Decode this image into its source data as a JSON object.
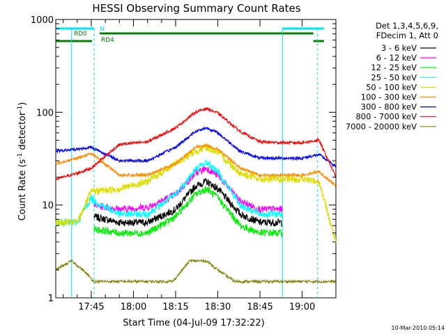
{
  "chart_data": {
    "type": "line",
    "title": "HESSI Observing Summary Count Rates",
    "xlabel": "Start Time (04-Jul-09 17:32:22)",
    "ylabel_main": "Count Rate (s",
    "ylabel_sup1": "-1",
    "ylabel_mid": " detector",
    "ylabel_sup2": "-1",
    "ylabel_end": ")",
    "y_scale": "log",
    "ylim": [
      1,
      1000
    ],
    "xlim": [
      "17:32:22",
      "19:12"
    ],
    "x_ticks": [
      "17:45",
      "18:00",
      "18:15",
      "18:30",
      "18:45",
      "19:00"
    ],
    "y_ticks": [
      "1",
      "10",
      "100",
      "1000"
    ],
    "grid": false,
    "legend_position": "right",
    "legend_header": [
      "Det 1,3,4,5,6,9,",
      "FDecim 1, Att 0"
    ],
    "footer_date": "10-Mar-2010 05:14",
    "flags": [
      {
        "label": "N",
        "color": "#00e5ee"
      },
      {
        "label": "RD0",
        "color": "#008000"
      },
      {
        "label": "RD4",
        "color": "#008000"
      }
    ],
    "night_boundaries": [
      "17:46",
      "18:53",
      "19:05"
    ],
    "series": [
      {
        "name": "3 - 6 keV",
        "color": "#000000",
        "x": [
          "17:46",
          "17:55",
          "18:05",
          "18:15",
          "18:22",
          "18:26",
          "18:30",
          "18:38",
          "18:45",
          "18:53"
        ],
        "values": [
          7.5,
          6.5,
          6.5,
          9,
          16,
          18,
          15,
          8,
          6.5,
          6.5
        ]
      },
      {
        "name": "6 - 12 keV",
        "color": "#ff00ff",
        "x": [
          "17:46",
          "17:55",
          "18:05",
          "18:15",
          "18:22",
          "18:26",
          "18:30",
          "18:38",
          "18:45",
          "18:53"
        ],
        "values": [
          10,
          9,
          9.5,
          13,
          22,
          25,
          21,
          11,
          9,
          9
        ]
      },
      {
        "name": "12 - 25 keV",
        "color": "#00ee00",
        "x": [
          "17:46",
          "17:55",
          "18:05",
          "18:15",
          "18:22",
          "18:26",
          "18:30",
          "18:38",
          "18:45",
          "18:53"
        ],
        "values": [
          5.5,
          5,
          5,
          7.5,
          13,
          15,
          12,
          6,
          5,
          5
        ]
      },
      {
        "name": "25 - 50 keV",
        "color": "#00ffff",
        "x": [
          "17:32:22",
          "17:40",
          "17:45",
          "17:46",
          "17:55",
          "18:05",
          "18:15",
          "18:22",
          "18:26",
          "18:30",
          "18:38",
          "18:45",
          "18:53"
        ],
        "values": [
          6.5,
          6.5,
          12,
          11,
          8,
          8,
          13,
          24,
          29,
          23,
          10,
          8,
          8
        ]
      },
      {
        "name": "50 - 100 keV",
        "color": "#dddd00",
        "x": [
          "17:32:22",
          "17:40",
          "17:45",
          "17:55",
          "18:05",
          "18:15",
          "18:22",
          "18:26",
          "18:30",
          "18:38",
          "18:45",
          "18:53",
          "19:00",
          "19:06",
          "19:12"
        ],
        "values": [
          6.5,
          6.5,
          14,
          15,
          18,
          28,
          38,
          42,
          37,
          22,
          19,
          19,
          19,
          18,
          4
        ]
      },
      {
        "name": "100 - 300 keV",
        "color": "#ff8c00",
        "x": [
          "17:32:22",
          "17:40",
          "17:45",
          "17:55",
          "18:05",
          "18:15",
          "18:22",
          "18:26",
          "18:30",
          "18:38",
          "18:45",
          "18:53",
          "19:00",
          "19:06",
          "19:12"
        ],
        "values": [
          28,
          32,
          36,
          21,
          21,
          28,
          42,
          44,
          40,
          25,
          21,
          21,
          21,
          23,
          16
        ]
      },
      {
        "name": "300 - 800 keV",
        "color": "#0000ff",
        "x": [
          "17:32:22",
          "17:40",
          "17:45",
          "17:55",
          "18:05",
          "18:15",
          "18:22",
          "18:26",
          "18:30",
          "18:38",
          "18:45",
          "18:53",
          "19:00",
          "19:06",
          "19:12"
        ],
        "values": [
          38,
          40,
          42,
          30,
          30,
          42,
          62,
          68,
          60,
          38,
          32,
          32,
          32,
          35,
          26
        ]
      },
      {
        "name": "800 - 7000 keV",
        "color": "#ff0000",
        "x": [
          "17:32:22",
          "17:40",
          "17:45",
          "17:55",
          "18:05",
          "18:15",
          "18:22",
          "18:26",
          "18:30",
          "18:38",
          "18:45",
          "18:53",
          "19:00",
          "19:06",
          "19:12"
        ],
        "values": [
          19,
          22,
          25,
          45,
          48,
          68,
          100,
          110,
          98,
          62,
          48,
          47,
          47,
          50,
          20
        ]
      },
      {
        "name": "7000 - 20000 keV",
        "color": "#808000",
        "x": [
          "17:32:22",
          "17:38",
          "17:42",
          "17:46",
          "18:08",
          "18:14",
          "18:20",
          "18:26",
          "18:30",
          "18:36",
          "19:05",
          "19:12"
        ],
        "values": [
          2,
          2.5,
          2,
          1.5,
          1.5,
          1.5,
          2.5,
          2.5,
          2,
          1.5,
          1.5,
          1.5
        ]
      }
    ]
  }
}
